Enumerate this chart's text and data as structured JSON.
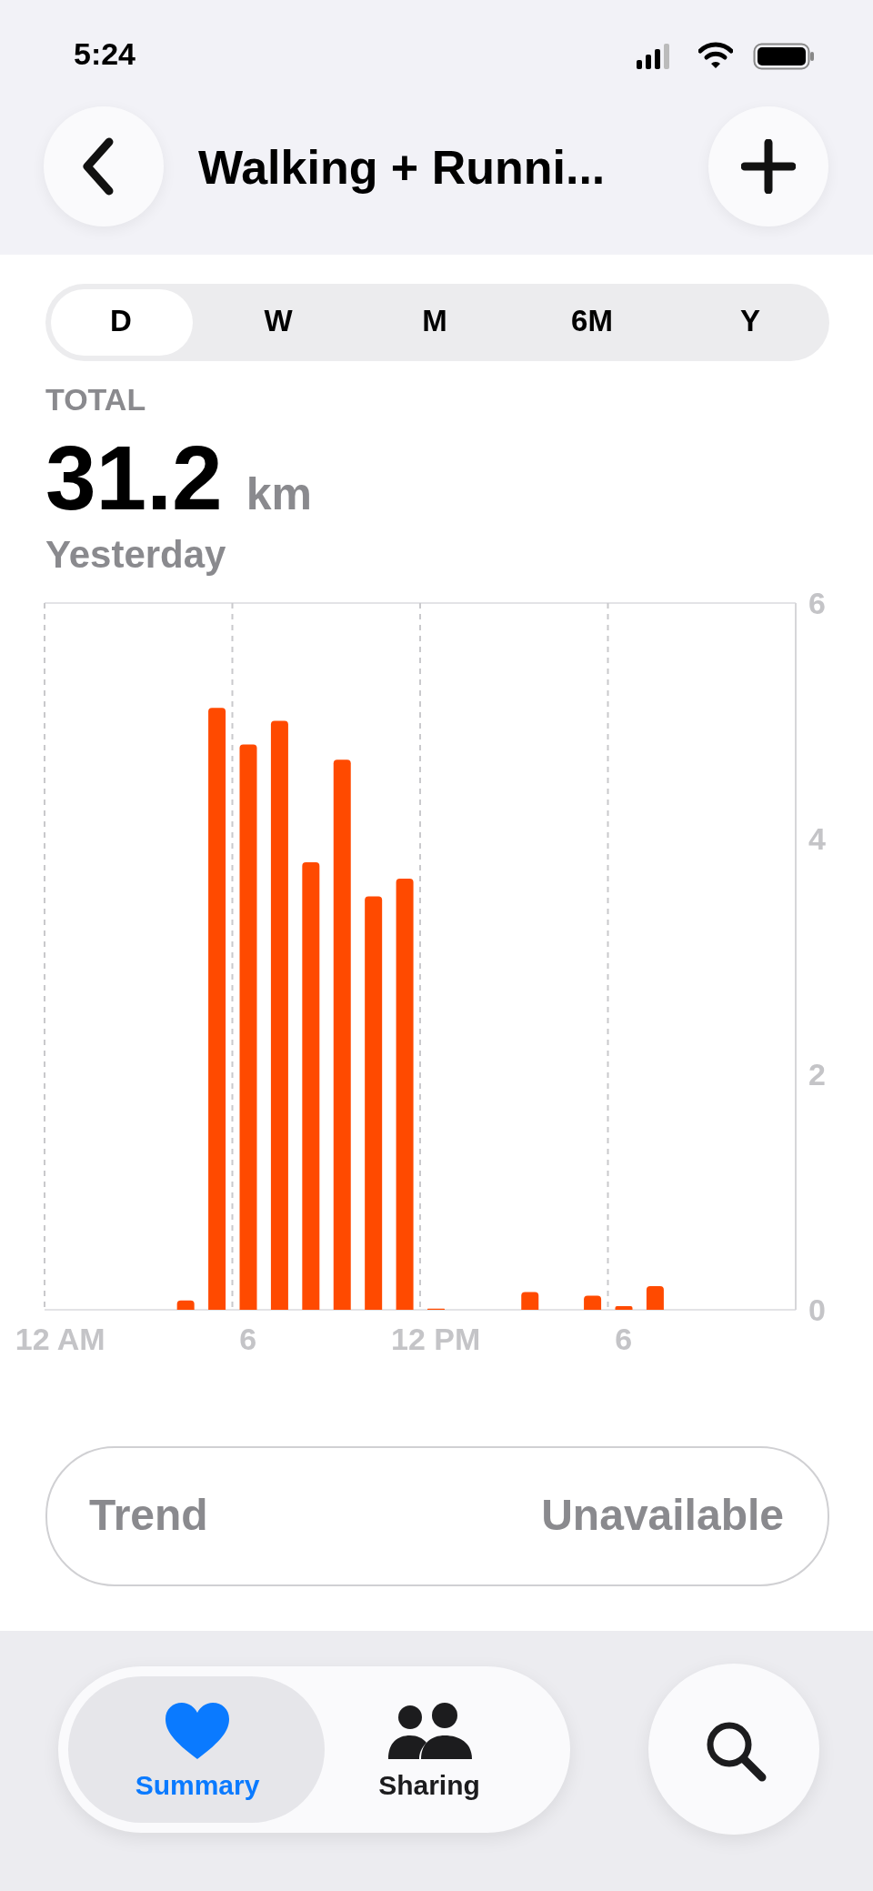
{
  "chart_data": {
    "type": "bar",
    "title": "Walking + Runni...",
    "annotations": [
      "5:24",
      "D",
      "W",
      "M",
      "6M",
      "Y",
      "TOTAL",
      "31.2",
      "km",
      "Yesterday",
      "Trend",
      "Unavailable",
      "Summary",
      "Sharing"
    ],
    "categories": [
      "12 AM",
      null,
      null,
      null,
      null,
      null,
      "6",
      null,
      null,
      null,
      null,
      null,
      "12 PM",
      null,
      null,
      null,
      null,
      null,
      "6",
      null,
      null,
      null,
      null,
      null
    ],
    "values": [
      null,
      null,
      null,
      null,
      0.08,
      5.11,
      4.8,
      5.0,
      3.8,
      4.67,
      3.51,
      3.66,
      0.01,
      null,
      null,
      0.15,
      null,
      0.12,
      0.03,
      0.2,
      null,
      null,
      null,
      null
    ],
    "color": "#ff4a00",
    "ylim": [
      0,
      6
    ],
    "yticks": [
      0,
      2,
      4,
      6
    ],
    "grid": true
  }
}
